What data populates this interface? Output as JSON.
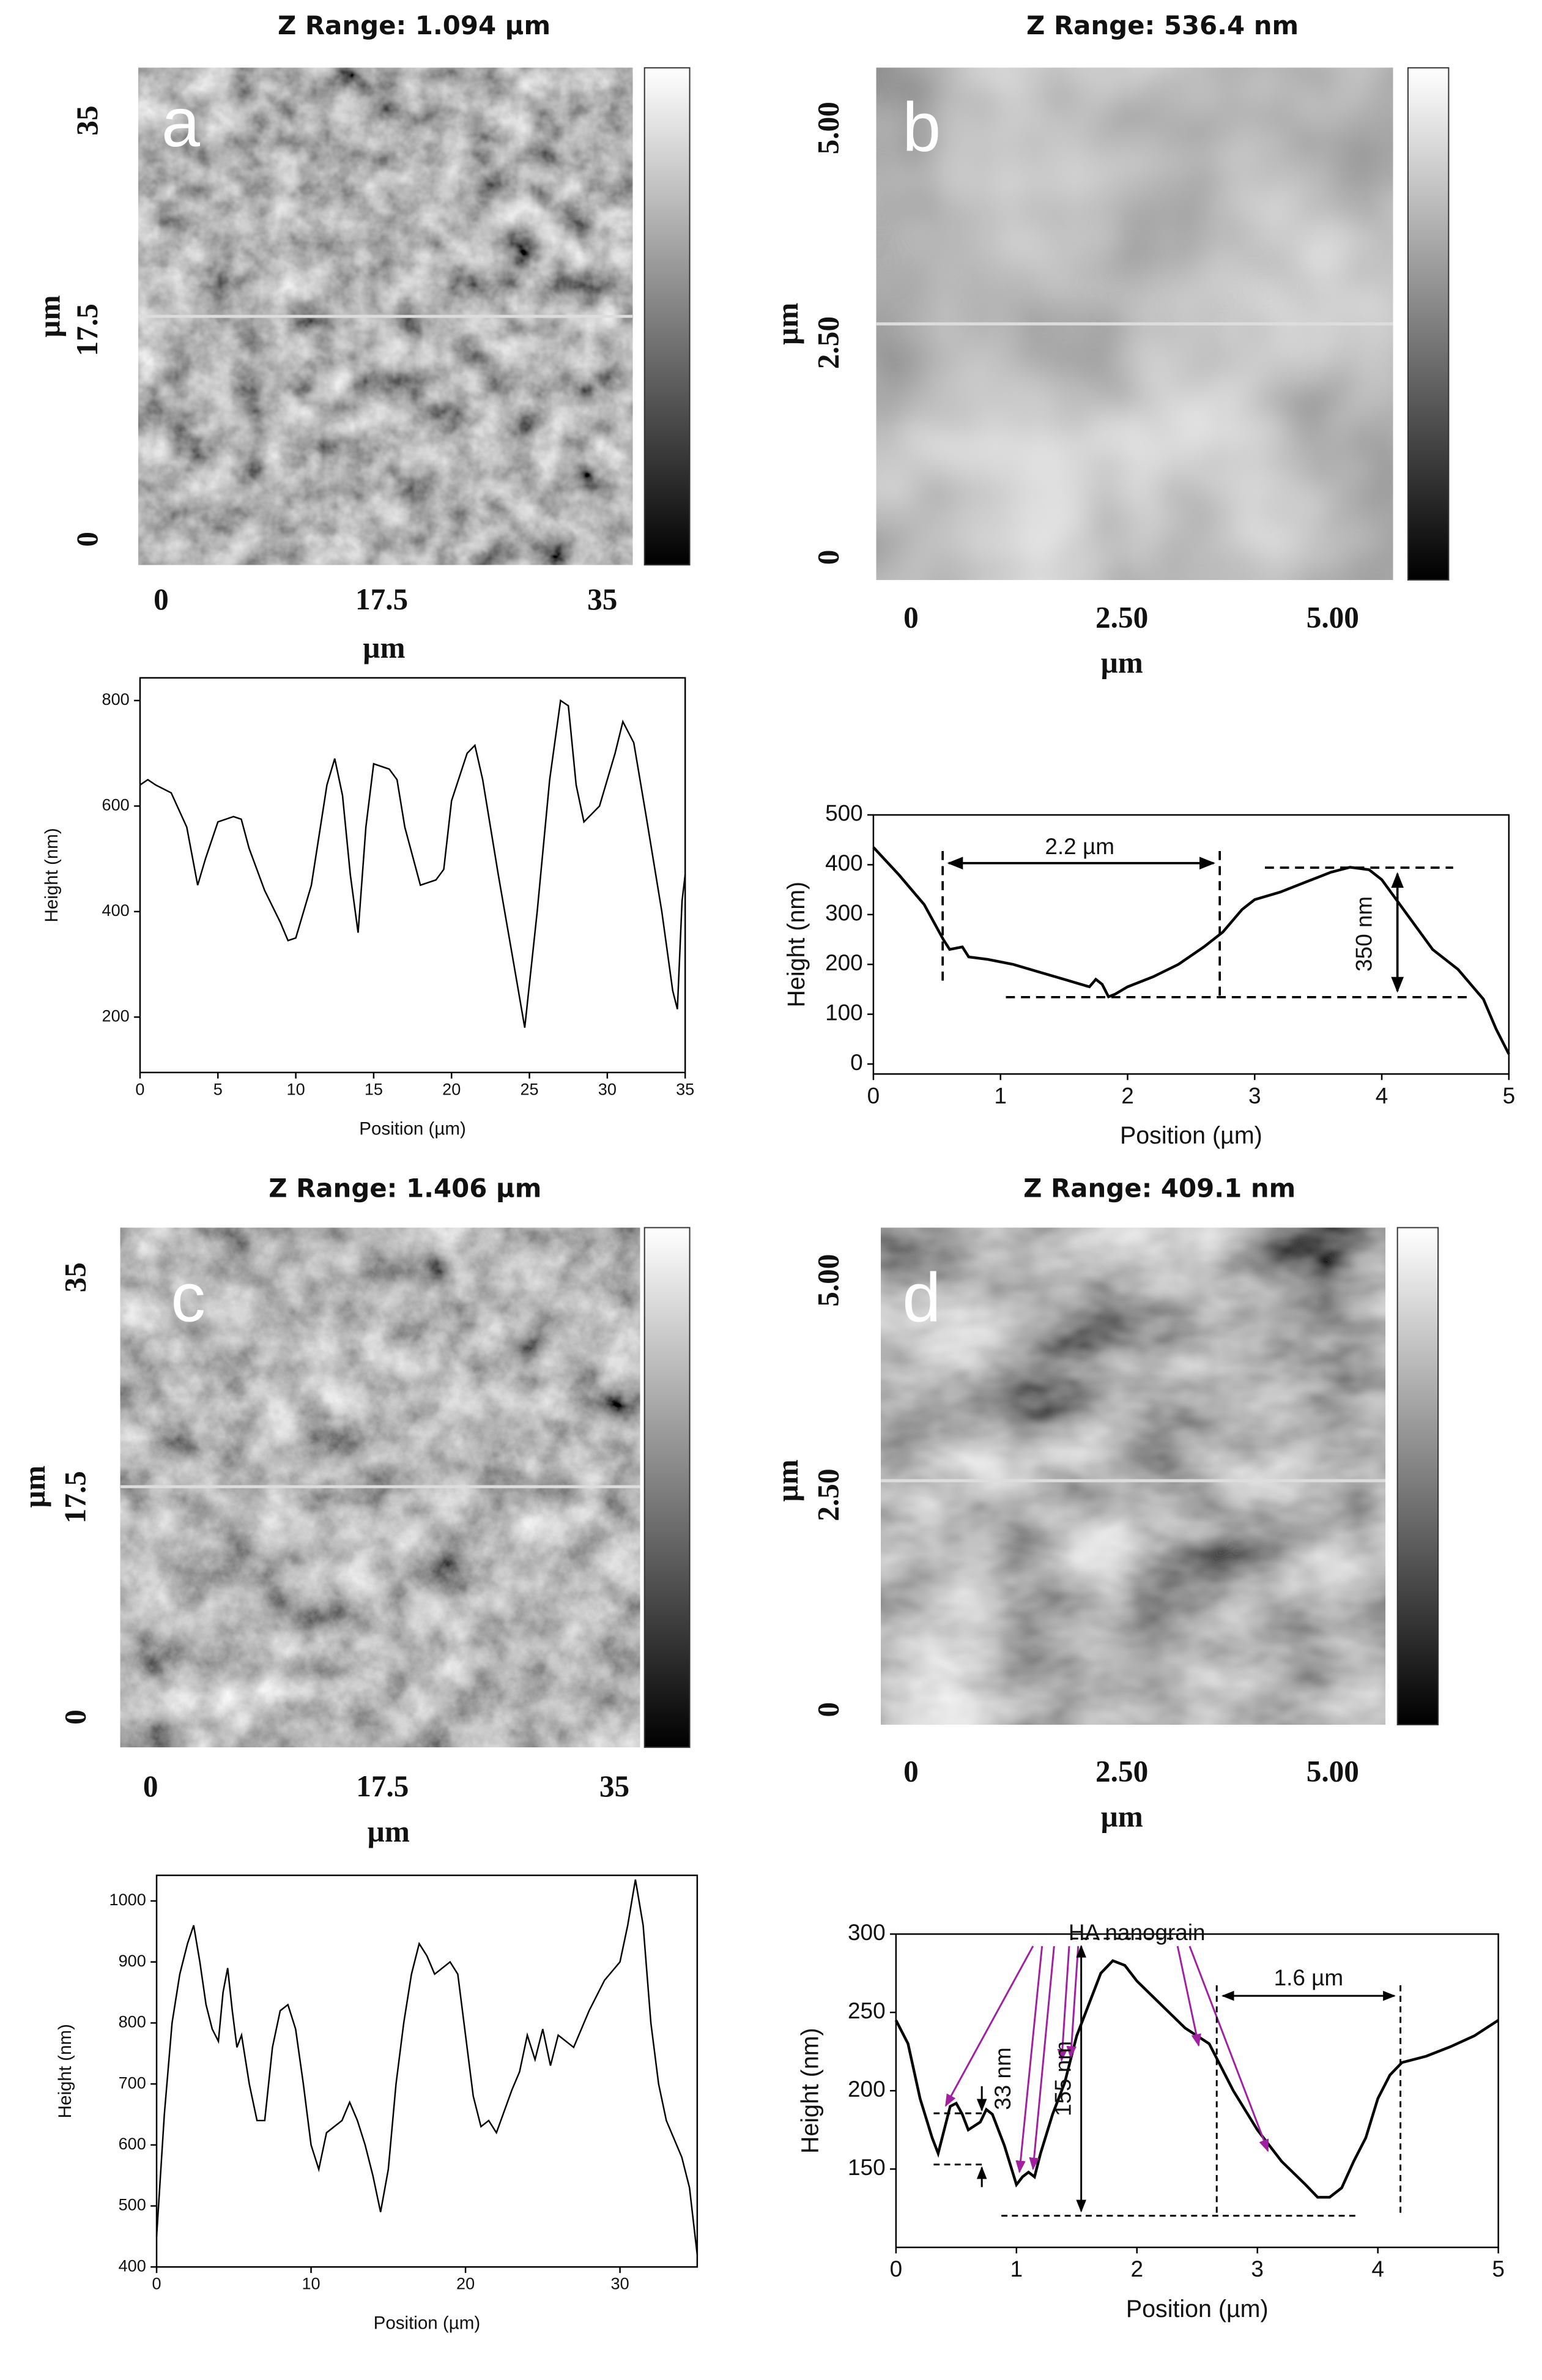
{
  "chart_data": [
    {
      "type": "image",
      "title": "Z Range: 1.094 µm",
      "panel_label": "a",
      "xlabel": "µm",
      "ylabel": "µm",
      "xlim": [
        0,
        35
      ],
      "ylim": [
        0,
        35
      ],
      "xticks": [
        0,
        17.5,
        35
      ],
      "yticks": [
        0,
        17.5,
        35
      ]
    },
    {
      "type": "line",
      "xlabel": "Position (µm)",
      "ylabel": "Height (nm)",
      "color": "#000000",
      "x": [
        0,
        0.5,
        1,
        2,
        3,
        3.7,
        4.2,
        5,
        6,
        6.5,
        7,
        8,
        9,
        9.5,
        10,
        11,
        12,
        12.5,
        13,
        13.5,
        14,
        14.5,
        15,
        16,
        16.5,
        17,
        18,
        19,
        19.5,
        20,
        21,
        21.5,
        22,
        23,
        24,
        24.7,
        25.5,
        26.3,
        27,
        27.5,
        28,
        28.5,
        29.5,
        30.5,
        31,
        31.7,
        32.5,
        33.5,
        34.2,
        34.5,
        34.8,
        35
      ],
      "values": [
        640,
        650,
        640,
        625,
        560,
        450,
        500,
        570,
        580,
        575,
        520,
        440,
        380,
        345,
        350,
        450,
        640,
        690,
        620,
        470,
        360,
        560,
        680,
        670,
        650,
        560,
        450,
        460,
        480,
        610,
        700,
        715,
        650,
        470,
        300,
        180,
        400,
        650,
        800,
        790,
        640,
        570,
        600,
        700,
        760,
        720,
        580,
        400,
        250,
        215,
        420,
        470
      ],
      "xlim": [
        0,
        35
      ],
      "ylim": [
        95,
        843
      ],
      "xticks": [
        0,
        5,
        10,
        15,
        20,
        25,
        30,
        35
      ],
      "yticks": [
        200,
        400,
        600,
        800
      ]
    },
    {
      "type": "image",
      "title": "Z Range: 536.4 nm",
      "panel_label": "b",
      "xlabel": "µm",
      "ylabel": "µm",
      "xlim": [
        0,
        5
      ],
      "ylim": [
        0,
        5
      ],
      "xticks": [
        0,
        {
          "value": 2.5,
          "label": "2.50"
        },
        {
          "value": 5,
          "label": "5.00"
        }
      ],
      "yticks": [
        0,
        {
          "value": 2.5,
          "label": "2.50"
        },
        {
          "value": 5,
          "label": "5.00"
        }
      ]
    },
    {
      "type": "line",
      "xlabel": "Position (µm)",
      "ylabel": "Height (nm)",
      "color": "#000000",
      "x": [
        0,
        0.2,
        0.4,
        0.55,
        0.6,
        0.7,
        0.75,
        0.9,
        1.1,
        1.3,
        1.5,
        1.7,
        1.75,
        1.8,
        1.85,
        1.9,
        2,
        2.2,
        2.4,
        2.6,
        2.75,
        2.9,
        3,
        3.2,
        3.4,
        3.6,
        3.75,
        3.9,
        4,
        4.2,
        4.4,
        4.6,
        4.8,
        4.9,
        5
      ],
      "values": [
        435,
        380,
        320,
        250,
        230,
        235,
        215,
        210,
        200,
        185,
        170,
        155,
        170,
        160,
        135,
        140,
        155,
        175,
        200,
        235,
        265,
        310,
        330,
        345,
        365,
        385,
        395,
        390,
        370,
        300,
        230,
        190,
        130,
        70,
        20
      ],
      "xlim": [
        0,
        5
      ],
      "ylim": [
        -20,
        500
      ],
      "xticks": [
        0,
        1,
        2,
        3,
        4,
        5
      ],
      "yticks": [
        0,
        100,
        200,
        300,
        400,
        500
      ],
      "annotations": [
        "2.2 µm",
        "350 nm"
      ]
    },
    {
      "type": "image",
      "title": "Z Range: 1.406 µm",
      "panel_label": "c",
      "xlabel": "µm",
      "ylabel": "µm",
      "xlim": [
        0,
        35
      ],
      "ylim": [
        0,
        35
      ],
      "xticks": [
        0,
        17.5,
        35
      ],
      "yticks": [
        0,
        17.5,
        35
      ]
    },
    {
      "type": "line",
      "xlabel": "Position (µm)",
      "ylabel": "Height (nm)",
      "color": "#000000",
      "x": [
        0,
        0.5,
        1,
        1.5,
        2,
        2.4,
        2.8,
        3.2,
        3.6,
        4,
        4.3,
        4.6,
        4.9,
        5.2,
        5.5,
        6,
        6.5,
        7,
        7.5,
        8,
        8.5,
        9,
        9.5,
        10,
        10.5,
        11,
        11.5,
        12,
        12.5,
        13,
        13.5,
        14,
        14.5,
        15,
        15.5,
        16,
        16.5,
        17,
        17.5,
        18,
        19,
        19.5,
        20,
        20.5,
        21,
        21.5,
        22,
        23,
        23.5,
        24,
        24.5,
        25,
        25.5,
        26,
        27,
        28,
        29,
        30,
        30.5,
        31,
        31.5,
        32,
        32.5,
        33,
        34,
        34.5,
        35
      ],
      "values": [
        450,
        650,
        800,
        880,
        930,
        960,
        900,
        830,
        790,
        770,
        850,
        890,
        820,
        760,
        780,
        700,
        640,
        640,
        760,
        820,
        830,
        790,
        700,
        600,
        560,
        620,
        630,
        640,
        670,
        640,
        600,
        550,
        490,
        560,
        700,
        800,
        880,
        930,
        910,
        880,
        900,
        880,
        780,
        680,
        630,
        640,
        620,
        690,
        720,
        780,
        740,
        790,
        730,
        780,
        760,
        820,
        870,
        900,
        960,
        1035,
        960,
        800,
        700,
        640,
        580,
        530,
        420
      ],
      "xlim": [
        0,
        35
      ],
      "ylim": [
        400,
        1042
      ],
      "xticks": [
        0,
        10,
        20,
        30
      ],
      "yticks": [
        400,
        500,
        600,
        700,
        800,
        900,
        1000
      ]
    },
    {
      "type": "image",
      "title": "Z Range: 409.1 nm",
      "panel_label": "d",
      "xlabel": "µm",
      "ylabel": "µm",
      "xlim": [
        0,
        5
      ],
      "ylim": [
        0,
        5
      ],
      "xticks": [
        0,
        {
          "value": 2.5,
          "label": "2.50"
        },
        {
          "value": 5,
          "label": "5.00"
        }
      ],
      "yticks": [
        0,
        {
          "value": 2.5,
          "label": "2.50"
        },
        {
          "value": 5,
          "label": "5.00"
        }
      ]
    },
    {
      "type": "line",
      "xlabel": "Position (µm)",
      "ylabel": "Height (nm)",
      "color": "#000000",
      "x": [
        0,
        0.1,
        0.2,
        0.3,
        0.35,
        0.4,
        0.45,
        0.5,
        0.55,
        0.6,
        0.7,
        0.75,
        0.8,
        0.9,
        1,
        1.05,
        1.1,
        1.15,
        1.2,
        1.3,
        1.4,
        1.5,
        1.6,
        1.7,
        1.8,
        1.9,
        2,
        2.2,
        2.4,
        2.6,
        2.8,
        3,
        3.2,
        3.4,
        3.5,
        3.6,
        3.7,
        3.8,
        3.9,
        4,
        4.1,
        4.2,
        4.4,
        4.6,
        4.8,
        5
      ],
      "values": [
        245,
        230,
        195,
        170,
        160,
        175,
        190,
        192,
        185,
        175,
        180,
        188,
        185,
        165,
        140,
        145,
        148,
        145,
        160,
        185,
        205,
        235,
        255,
        275,
        283,
        280,
        270,
        255,
        240,
        230,
        200,
        175,
        155,
        140,
        132,
        132,
        138,
        155,
        170,
        195,
        210,
        218,
        222,
        228,
        235,
        245
      ],
      "xlim": [
        0,
        5
      ],
      "ylim": [
        100,
        300
      ],
      "xticks": [
        0,
        1,
        2,
        3,
        4,
        5
      ],
      "yticks": [
        150,
        200,
        250,
        300
      ],
      "annotations": [
        "HA nanograin",
        "1.6 µm",
        "33 nm",
        "155 nm"
      ]
    }
  ]
}
